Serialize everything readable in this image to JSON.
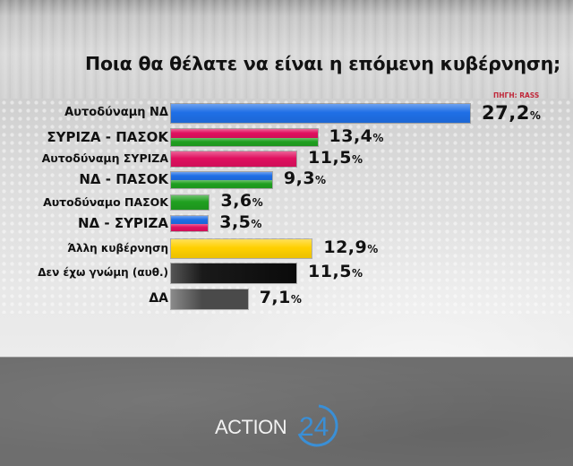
{
  "header": {
    "title": "Ποια θα θέλατε να είναι η επόμενη κυβέρνηση;",
    "source": "ΠΗΓΗ: RASS"
  },
  "branding": {
    "logo_text": "ACTION",
    "logo_number": "24",
    "logo_color": "#3a8fd6"
  },
  "colors": {
    "nd_blue": "#1f6fe6",
    "syriza_pink": "#e0105f",
    "pasok_green": "#20a020",
    "other_yellow": "#ffd000",
    "no_opinion_black": "#111111",
    "na_gray": "#5a5a5a"
  },
  "chart_data": {
    "type": "bar",
    "orientation": "horizontal",
    "title": "Ποια θα θέλατε να είναι η επόμενη κυβέρνηση;",
    "source": "ΠΗΓΗ: RASS",
    "xlabel": "",
    "ylabel": "",
    "unit": "%",
    "grid": false,
    "xlim": [
      0,
      27.2
    ],
    "categories": [
      "Αυτοδύναμη ΝΔ",
      "ΣΥΡΙΖΑ - ΠΑΣΟΚ",
      "Αυτοδύναμη ΣΥΡΙΖΑ",
      "ΝΔ - ΠΑΣΟΚ",
      "Αυτοδύναμο ΠΑΣΟΚ",
      "ΝΔ - ΣΥΡΙΖΑ",
      "Άλλη κυβέρνηση",
      "Δεν έχω γνώμη (αυθ.)",
      "ΔΑ"
    ],
    "values": [
      27.2,
      13.4,
      11.5,
      9.3,
      3.6,
      3.5,
      12.9,
      11.5,
      7.1
    ],
    "value_labels": [
      "27,2",
      "13,4",
      "11,5",
      "9,3",
      "3,6",
      "3,5",
      "12,9",
      "11,5",
      "7,1"
    ],
    "bar_colors": [
      [
        "nd_blue"
      ],
      [
        "syriza_pink",
        "pasok_green"
      ],
      [
        "syriza_pink"
      ],
      [
        "nd_blue",
        "pasok_green"
      ],
      [
        "pasok_green"
      ],
      [
        "nd_blue",
        "syriza_pink"
      ],
      [
        "other_yellow"
      ],
      [
        "no_opinion_black"
      ],
      [
        "na_gray"
      ]
    ]
  }
}
